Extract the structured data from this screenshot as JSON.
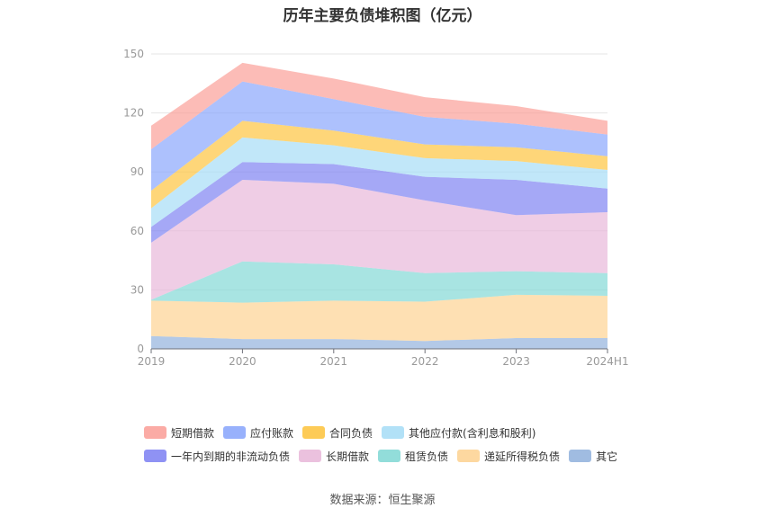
{
  "page": {
    "title": "历年主要负债堆积图（亿元）",
    "source": "数据来源：恒生聚源"
  },
  "chart_data": {
    "type": "area",
    "stacked": true,
    "title": "历年主要负债堆积图（亿元）",
    "categories": [
      "2019",
      "2020",
      "2021",
      "2022",
      "2023",
      "2024H1"
    ],
    "ylim": [
      0,
      150
    ],
    "yticks": [
      "0",
      "30",
      "60",
      "90",
      "120",
      "150"
    ],
    "grid": true,
    "legend_position": "bottom",
    "series": [
      {
        "name": "其它",
        "color": "#8fb0dc",
        "values": [
          6.5,
          5,
          5,
          4,
          5.5,
          5.5
        ]
      },
      {
        "name": "递延所得税负债",
        "color": "#fdd18f",
        "values": [
          18,
          18.5,
          19.5,
          20,
          22,
          21.5
        ]
      },
      {
        "name": "租赁负债",
        "color": "#7fd7d4",
        "values": [
          0.5,
          21,
          18.5,
          14.5,
          12,
          11.5
        ]
      },
      {
        "name": "长期借款",
        "color": "#e8b6d8",
        "values": [
          29,
          41.5,
          41,
          37,
          28.5,
          31
        ]
      },
      {
        "name": "一年内到期的非流动负债",
        "color": "#7b7ff2",
        "values": [
          8,
          9,
          10,
          12,
          18,
          12
        ]
      },
      {
        "name": "其他应付款(含利息和股利)",
        "color": "#a4dcf6",
        "values": [
          9.5,
          12.5,
          9.5,
          9.5,
          9.5,
          9.5
        ]
      },
      {
        "name": "合同负债",
        "color": "#fdc23a",
        "values": [
          9,
          8.5,
          7.5,
          7,
          7,
          7
        ]
      },
      {
        "name": "应付账款",
        "color": "#86a3fc",
        "values": [
          21,
          20,
          16,
          14,
          12,
          11
        ]
      },
      {
        "name": "短期借款",
        "color": "#fa9c95",
        "values": [
          12,
          9.5,
          10.5,
          10,
          9,
          7
        ]
      }
    ],
    "legend_rows": [
      [
        "短期借款",
        "应付账款",
        "合同负债",
        "其他应付款(含利息和股利)"
      ],
      [
        "一年内到期的非流动负债",
        "长期借款",
        "租赁负债",
        "递延所得税负债",
        "其它"
      ]
    ]
  }
}
